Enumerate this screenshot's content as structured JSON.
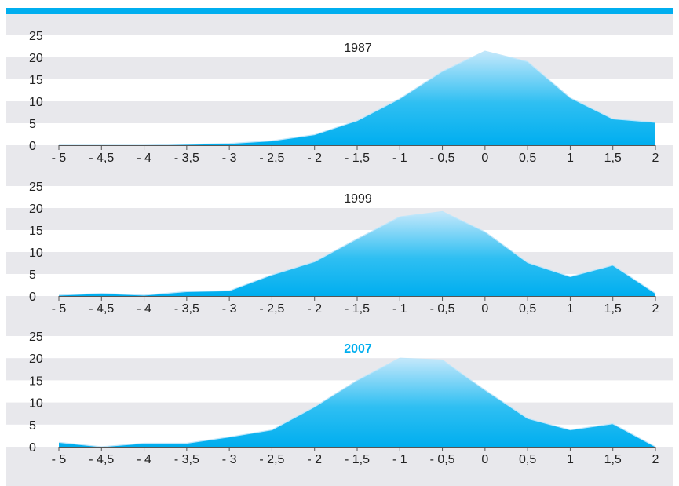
{
  "colors": {
    "accent": "#00aeef",
    "band": "#ffffff",
    "area_top": "#c4e8fb",
    "area_bottom": "#00aeef",
    "title_default": "#222222"
  },
  "chart_data": [
    {
      "type": "area",
      "title": "1987",
      "x": [
        -5,
        -4.5,
        -4,
        -3.5,
        -3,
        -2.5,
        -2,
        -1.5,
        -1,
        -0.5,
        0,
        0.5,
        1,
        1.5,
        2
      ],
      "x_tick_labels": [
        "- 5",
        "- 4,5",
        "- 4",
        "- 3,5",
        "- 3",
        "- 2,5",
        "- 2",
        "- 1,5",
        "- 1",
        "- 0,5",
        "0",
        "0,5",
        "1",
        "1,5",
        "2"
      ],
      "values": [
        0,
        0,
        0,
        0.2,
        0.4,
        1,
        2.4,
        5.6,
        10.6,
        16.8,
        21.4,
        19,
        10.8,
        6,
        5.2
      ],
      "y_ticks": [
        0,
        5,
        10,
        15,
        20,
        25
      ],
      "ylim": [
        0,
        25
      ],
      "title_highlight": false
    },
    {
      "type": "area",
      "title": "1999",
      "x": [
        -5,
        -4.5,
        -4,
        -3.5,
        -3,
        -2.5,
        -2,
        -1.5,
        -1,
        -0.5,
        0,
        0.5,
        1,
        1.5,
        2
      ],
      "x_tick_labels": [
        "- 5",
        "- 4,5",
        "- 4",
        "- 3,5",
        "- 3",
        "- 2,5",
        "- 2",
        "- 1,5",
        "- 1",
        "- 0,5",
        "0",
        "0,5",
        "1",
        "1,5",
        "2"
      ],
      "values": [
        0.2,
        0.6,
        0.2,
        1,
        1.2,
        4.8,
        7.8,
        13,
        18,
        19.2,
        14.6,
        7.6,
        4.4,
        7,
        0.6
      ],
      "y_ticks": [
        0,
        5,
        10,
        15,
        20,
        25
      ],
      "ylim": [
        0,
        25
      ],
      "title_highlight": false
    },
    {
      "type": "area",
      "title": "2007",
      "x": [
        -5,
        -4.5,
        -4,
        -3.5,
        -3,
        -2.5,
        -2,
        -1.5,
        -1,
        -0.5,
        0,
        0.5,
        1,
        1.5,
        2
      ],
      "x_tick_labels": [
        "- 5",
        "- 4,5",
        "- 4",
        "- 3,5",
        "- 3",
        "- 2,5",
        "- 2",
        "- 1,5",
        "- 1",
        "- 0,5",
        "0",
        "0,5",
        "1",
        "1,5",
        "2"
      ],
      "values": [
        1,
        0,
        0.8,
        0.8,
        2.2,
        3.8,
        9,
        15,
        20,
        19.6,
        12.8,
        6.4,
        3.8,
        5.2,
        0
      ],
      "y_ticks": [
        0,
        5,
        10,
        15,
        20,
        25
      ],
      "ylim": [
        0,
        25
      ],
      "title_highlight": true
    }
  ]
}
